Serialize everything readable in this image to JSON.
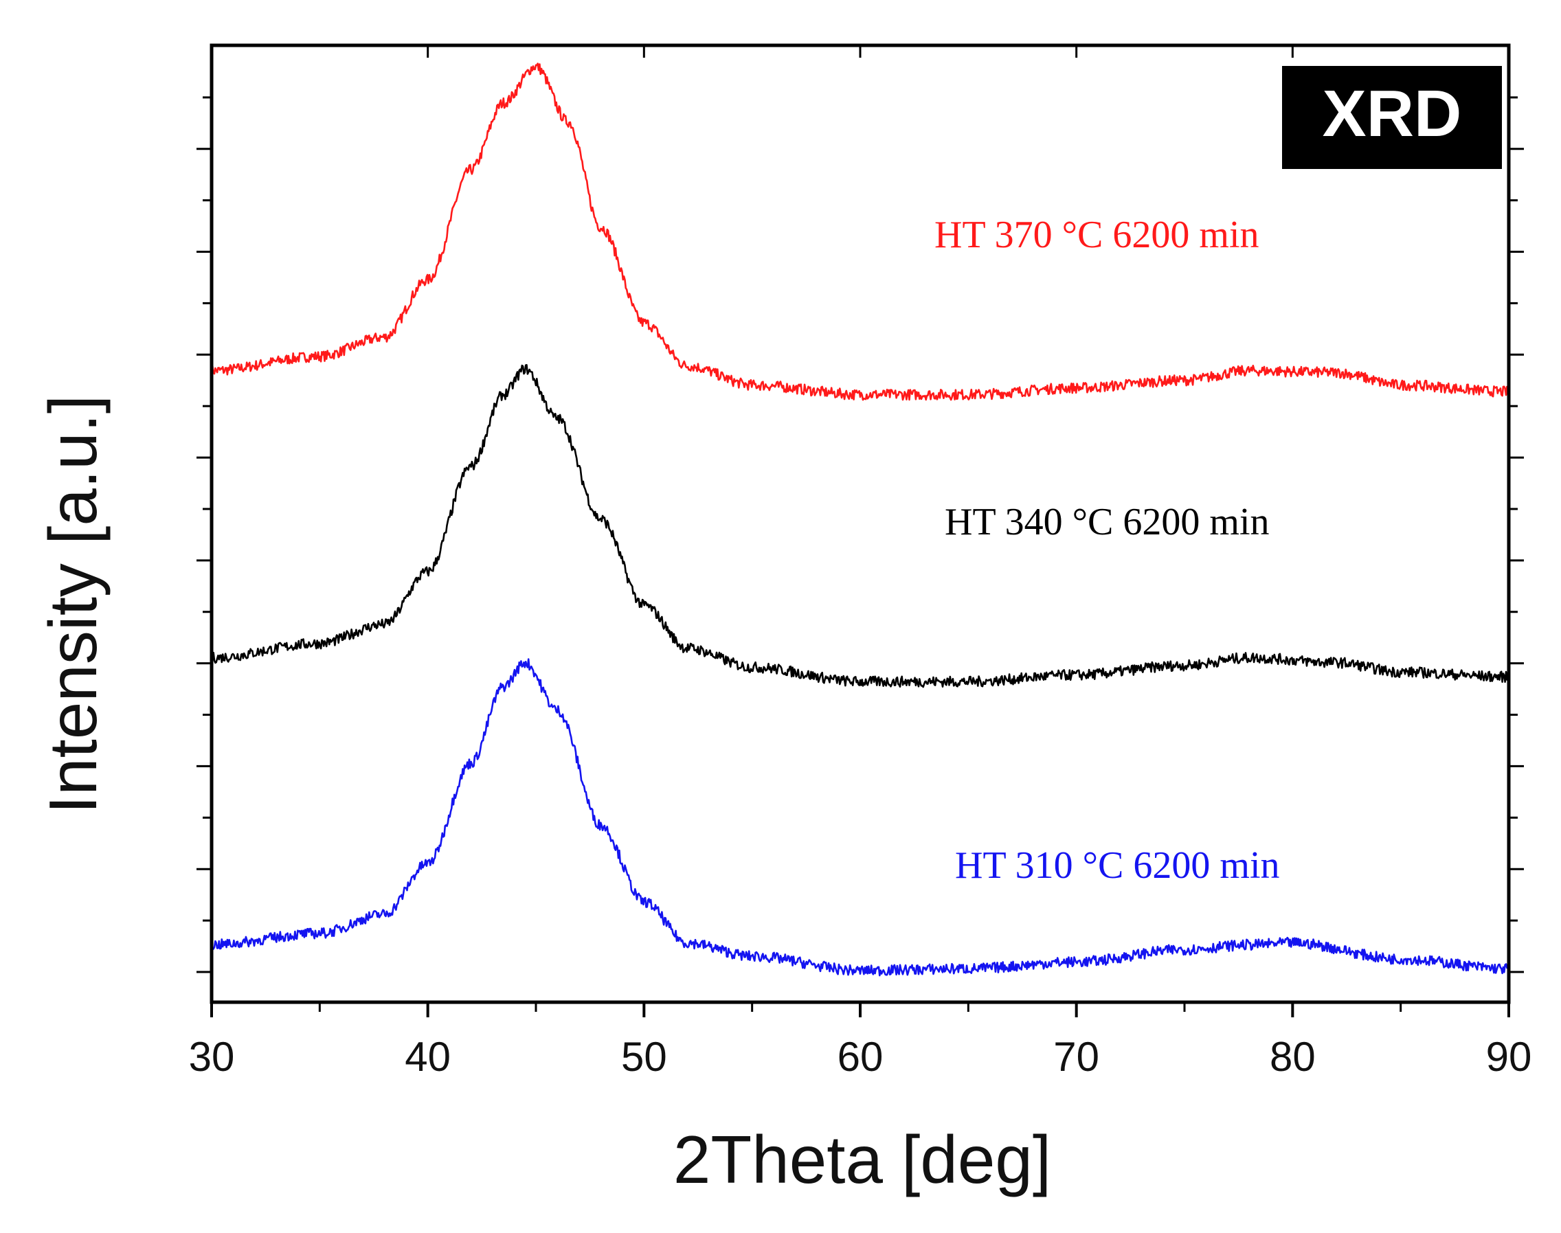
{
  "chart_data": {
    "type": "line",
    "title": "",
    "badge": "XRD",
    "xlabel": "2Theta [deg]",
    "ylabel": "Intensity [a.u.]",
    "xlim": [
      30,
      90
    ],
    "ylim": [
      0,
      10
    ],
    "x_ticks": [
      30,
      40,
      50,
      60,
      70,
      80,
      90
    ],
    "x_minor_step": 5,
    "y_tick_labels": "none",
    "grid": false,
    "legend": "inline labels to the right of each curve",
    "series": [
      {
        "name": "HT 370 °C 6200 min",
        "color": "#ff1a1a",
        "baseline": 6.6,
        "points": [
          [
            30,
            6.6
          ],
          [
            35,
            6.75
          ],
          [
            38,
            6.95
          ],
          [
            40,
            7.55
          ],
          [
            42,
            8.7
          ],
          [
            43.5,
            9.4
          ],
          [
            45,
            9.78
          ],
          [
            46.5,
            9.2
          ],
          [
            48,
            8.1
          ],
          [
            50,
            7.1
          ],
          [
            52,
            6.65
          ],
          [
            55,
            6.45
          ],
          [
            60,
            6.35
          ],
          [
            65,
            6.35
          ],
          [
            70,
            6.42
          ],
          [
            75,
            6.5
          ],
          [
            78,
            6.6
          ],
          [
            82,
            6.58
          ],
          [
            85,
            6.45
          ],
          [
            90,
            6.38
          ]
        ]
      },
      {
        "name": "HT 340 °C 6200 min",
        "color": "#000000",
        "baseline": 3.6,
        "points": [
          [
            30,
            3.6
          ],
          [
            35,
            3.75
          ],
          [
            38,
            3.95
          ],
          [
            40,
            4.5
          ],
          [
            42,
            5.6
          ],
          [
            43.5,
            6.35
          ],
          [
            44.5,
            6.62
          ],
          [
            46,
            6.1
          ],
          [
            48,
            5.05
          ],
          [
            50,
            4.15
          ],
          [
            52,
            3.7
          ],
          [
            55,
            3.5
          ],
          [
            60,
            3.35
          ],
          [
            65,
            3.35
          ],
          [
            70,
            3.42
          ],
          [
            75,
            3.52
          ],
          [
            78,
            3.6
          ],
          [
            82,
            3.55
          ],
          [
            85,
            3.45
          ],
          [
            90,
            3.4
          ]
        ]
      },
      {
        "name": "HT 310 °C 6200 min",
        "color": "#1414f0",
        "baseline": 0.6,
        "points": [
          [
            30,
            0.6
          ],
          [
            35,
            0.72
          ],
          [
            38,
            0.92
          ],
          [
            40,
            1.45
          ],
          [
            42,
            2.5
          ],
          [
            43.5,
            3.3
          ],
          [
            44.5,
            3.55
          ],
          [
            46,
            3.05
          ],
          [
            48,
            1.85
          ],
          [
            50,
            1.05
          ],
          [
            52,
            0.62
          ],
          [
            55,
            0.48
          ],
          [
            60,
            0.33
          ],
          [
            65,
            0.35
          ],
          [
            70,
            0.42
          ],
          [
            75,
            0.55
          ],
          [
            78,
            0.6
          ],
          [
            80,
            0.62
          ],
          [
            85,
            0.45
          ],
          [
            90,
            0.35
          ]
        ]
      }
    ]
  }
}
